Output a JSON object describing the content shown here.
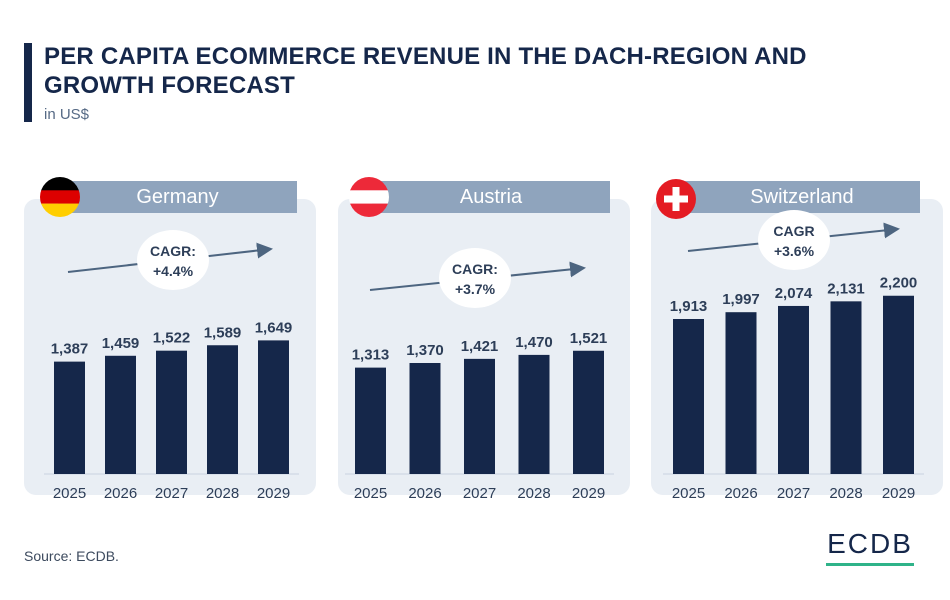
{
  "header": {
    "title": "PER CAPITA ECOMMERCE REVENUE IN THE DACH-REGION AND GROWTH FORECAST",
    "subtitle": "in US$"
  },
  "colors": {
    "bar": "#15274a",
    "panel_bg": "#e9eef4",
    "header_bg": "#8fa4bd",
    "arrow": "#4d6580",
    "label_text": "#2d3e58",
    "logo_underline": "#2fb389"
  },
  "chart_data": [
    {
      "type": "bar",
      "country": "Germany",
      "flag": "germany-flag-icon",
      "categories": [
        "2025",
        "2026",
        "2027",
        "2028",
        "2029"
      ],
      "values": [
        1387,
        1459,
        1522,
        1589,
        1649
      ],
      "value_labels": [
        "1,387",
        "1,459",
        "1,522",
        "1,589",
        "1,649"
      ],
      "cagr_label": "CAGR:",
      "cagr_value": "+4.4%"
    },
    {
      "type": "bar",
      "country": "Austria",
      "flag": "austria-flag-icon",
      "categories": [
        "2025",
        "2026",
        "2027",
        "2028",
        "2029"
      ],
      "values": [
        1313,
        1370,
        1421,
        1470,
        1521
      ],
      "value_labels": [
        "1,313",
        "1,370",
        "1,421",
        "1,470",
        "1,521"
      ],
      "cagr_label": "CAGR:",
      "cagr_value": "+3.7%"
    },
    {
      "type": "bar",
      "country": "Switzerland",
      "flag": "switzerland-flag-icon",
      "categories": [
        "2025",
        "2026",
        "2027",
        "2028",
        "2029"
      ],
      "values": [
        1913,
        1997,
        2074,
        2131,
        2200
      ],
      "value_labels": [
        "1,913",
        "1,997",
        "2,074",
        "2,131",
        "2,200"
      ],
      "cagr_label": "CAGR",
      "cagr_value": "+3.6%"
    }
  ],
  "footer": {
    "source": "Source: ECDB.",
    "logo": "ECDB"
  }
}
